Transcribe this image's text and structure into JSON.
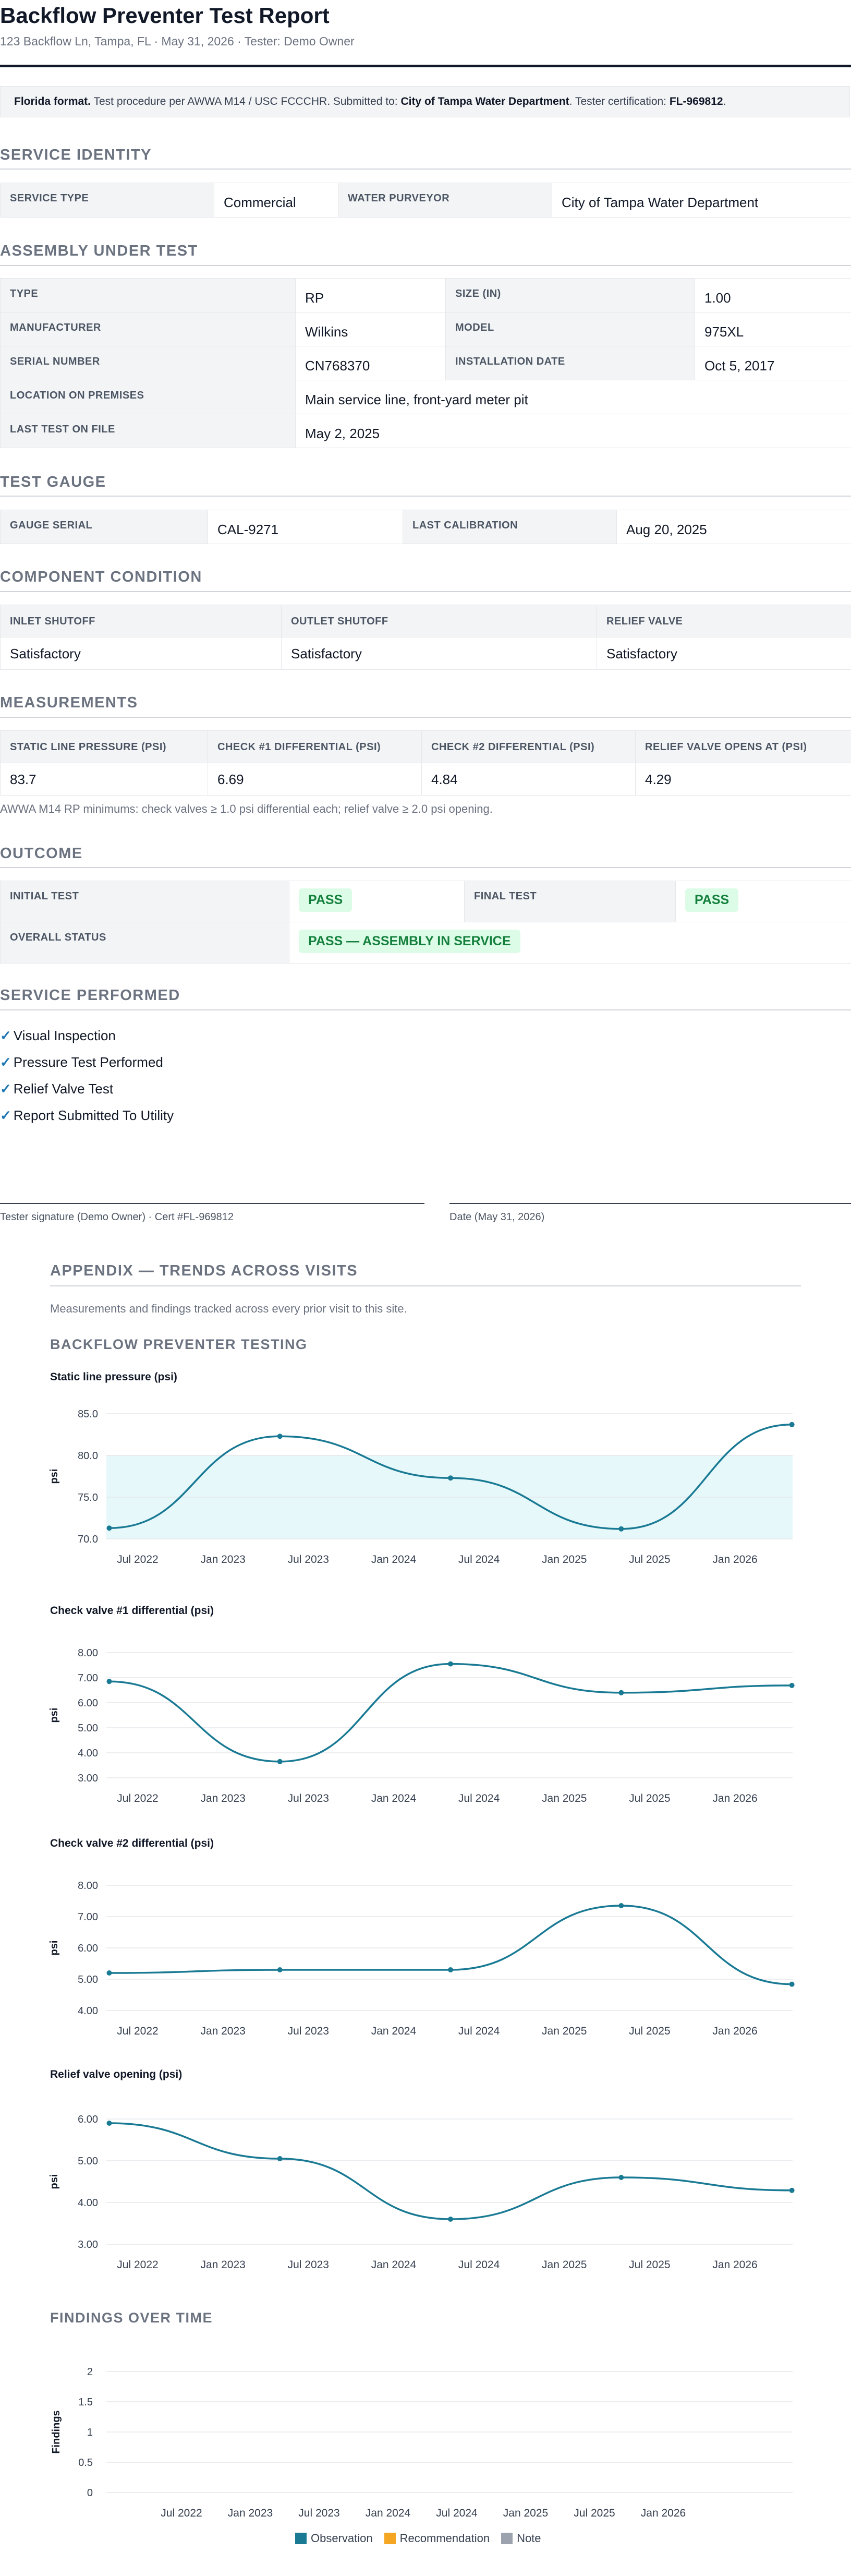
{
  "header": {
    "title": "Backflow Preventer Test Report",
    "subtitle": "123 Backflow Ln, Tampa, FL · May 31, 2026 · Tester: Demo Owner"
  },
  "note": {
    "format_label": "Florida format.",
    "text1": " Test procedure per AWWA M14 / USC FCCCHR. Submitted to: ",
    "purveyor": "City of Tampa Water Department",
    "text2": ". Tester certification: ",
    "cert": "FL-969812",
    "text3": "."
  },
  "service_identity": {
    "heading": "SERVICE IDENTITY",
    "service_type_label": "SERVICE TYPE",
    "service_type": "Commercial",
    "purveyor_label": "WATER PURVEYOR",
    "purveyor": "City of Tampa Water Department"
  },
  "assembly": {
    "heading": "ASSEMBLY UNDER TEST",
    "type_label": "TYPE",
    "type": "RP",
    "size_label": "SIZE (IN)",
    "size": "1.00",
    "manufacturer_label": "MANUFACTURER",
    "manufacturer": "Wilkins",
    "model_label": "MODEL",
    "model": "975XL",
    "serial_label": "SERIAL NUMBER",
    "serial": "CN768370",
    "install_label": "INSTALLATION DATE",
    "install": "Oct 5, 2017",
    "location_label": "LOCATION ON PREMISES",
    "location": "Main service line, front-yard meter pit",
    "last_test_label": "LAST TEST ON FILE",
    "last_test": "May 2, 2025"
  },
  "gauge": {
    "heading": "TEST GAUGE",
    "serial_label": "GAUGE SERIAL",
    "serial": "CAL-9271",
    "calibration_label": "LAST CALIBRATION",
    "calibration": "Aug 20, 2025"
  },
  "components": {
    "heading": "COMPONENT CONDITION",
    "headers": [
      "INLET SHUTOFF",
      "OUTLET SHUTOFF",
      "RELIEF VALVE"
    ],
    "values": [
      "Satisfactory",
      "Satisfactory",
      "Satisfactory"
    ]
  },
  "measurements": {
    "heading": "MEASUREMENTS",
    "headers": [
      "STATIC LINE PRESSURE (PSI)",
      "CHECK #1 DIFFERENTIAL (PSI)",
      "CHECK #2 DIFFERENTIAL (PSI)",
      "RELIEF VALVE OPENS AT (PSI)"
    ],
    "values": [
      "83.7",
      "6.69",
      "4.84",
      "4.29"
    ],
    "footnote": "AWWA M14 RP minimums: check valves ≥ 1.0 psi differential each; relief valve ≥ 2.0 psi opening."
  },
  "outcome": {
    "heading": "OUTCOME",
    "initial_label": "INITIAL TEST",
    "initial": "PASS",
    "final_label": "FINAL TEST",
    "final": "PASS",
    "overall_label": "OVERALL STATUS",
    "overall": "PASS — ASSEMBLY IN SERVICE"
  },
  "service": {
    "heading": "SERVICE PERFORMED",
    "check": "✓",
    "items": [
      "Visual Inspection",
      "Pressure Test Performed",
      "Relief Valve Test",
      "Report Submitted To Utility"
    ]
  },
  "signature": {
    "tester": "Tester signature (Demo Owner) · Cert #FL-969812",
    "date": "Date (May 31, 2026)"
  },
  "appendix": {
    "title": "APPENDIX — TRENDS ACROSS VISITS",
    "description": "Measurements and findings tracked across every prior visit to this site.",
    "subtitle": "BACKFLOW PREVENTER TESTING",
    "findings_title": "FINDINGS OVER TIME"
  },
  "colors": {
    "line": "#1a7a94",
    "band": "#e6f8fa",
    "observation": "#1a7a94",
    "recommendation": "#f5a623",
    "note": "#9ca3af"
  },
  "chart_data": [
    {
      "type": "line",
      "title": "Static line pressure (psi)",
      "ylabel": "psi",
      "x": [
        "2022-05",
        "2023-05",
        "2024-05",
        "2025-05",
        "2026-05"
      ],
      "values": [
        71.3,
        82.3,
        77.3,
        71.2,
        83.7
      ],
      "ylim": [
        70,
        85
      ],
      "yticks": [
        "70.0",
        "75.0",
        "80.0",
        "85.0"
      ],
      "band": [
        70,
        80
      ],
      "xticks": [
        "Jul 2022",
        "Jan 2023",
        "Jul 2023",
        "Jan 2024",
        "Jul 2024",
        "Jan 2025",
        "Jul 2025",
        "Jan 2026"
      ]
    },
    {
      "type": "line",
      "title": "Check valve #1 differential (psi)",
      "ylabel": "psi",
      "x": [
        "2022-05",
        "2023-05",
        "2024-05",
        "2025-05",
        "2026-05"
      ],
      "values": [
        6.85,
        3.65,
        7.55,
        6.4,
        6.69
      ],
      "ylim": [
        3,
        8
      ],
      "yticks": [
        "3.00",
        "4.00",
        "5.00",
        "6.00",
        "7.00",
        "8.00"
      ],
      "xticks": [
        "Jul 2022",
        "Jan 2023",
        "Jul 2023",
        "Jan 2024",
        "Jul 2024",
        "Jan 2025",
        "Jul 2025",
        "Jan 2026"
      ]
    },
    {
      "type": "line",
      "title": "Check valve #2 differential (psi)",
      "ylabel": "psi",
      "x": [
        "2022-05",
        "2023-05",
        "2024-05",
        "2025-05",
        "2026-05"
      ],
      "values": [
        5.2,
        5.3,
        5.3,
        7.35,
        4.84
      ],
      "ylim": [
        4,
        8
      ],
      "yticks": [
        "4.00",
        "5.00",
        "6.00",
        "7.00",
        "8.00"
      ],
      "xticks": [
        "Jul 2022",
        "Jan 2023",
        "Jul 2023",
        "Jan 2024",
        "Jul 2024",
        "Jan 2025",
        "Jul 2025",
        "Jan 2026"
      ]
    },
    {
      "type": "line",
      "title": "Relief valve opening (psi)",
      "ylabel": "psi",
      "x": [
        "2022-05",
        "2023-05",
        "2024-05",
        "2025-05",
        "2026-05"
      ],
      "values": [
        5.9,
        5.05,
        3.6,
        4.6,
        4.29
      ],
      "ylim": [
        3,
        6
      ],
      "yticks": [
        "3.00",
        "4.00",
        "5.00",
        "6.00"
      ],
      "xticks": [
        "Jul 2022",
        "Jan 2023",
        "Jul 2023",
        "Jan 2024",
        "Jul 2024",
        "Jan 2025",
        "Jul 2025",
        "Jan 2026"
      ]
    },
    {
      "type": "bar",
      "title": "",
      "ylabel": "Findings",
      "ylim": [
        0,
        2
      ],
      "yticks": [
        "0",
        "0.5",
        "1",
        "1.5",
        "2"
      ],
      "xticks": [
        "Jul 2022",
        "Jan 2023",
        "Jul 2023",
        "Jan 2024",
        "Jul 2024",
        "Jan 2025",
        "Jul 2025",
        "Jan 2026"
      ],
      "series": [
        {
          "name": "Observation",
          "values": []
        },
        {
          "name": "Recommendation",
          "values": []
        },
        {
          "name": "Note",
          "values": []
        }
      ]
    }
  ]
}
